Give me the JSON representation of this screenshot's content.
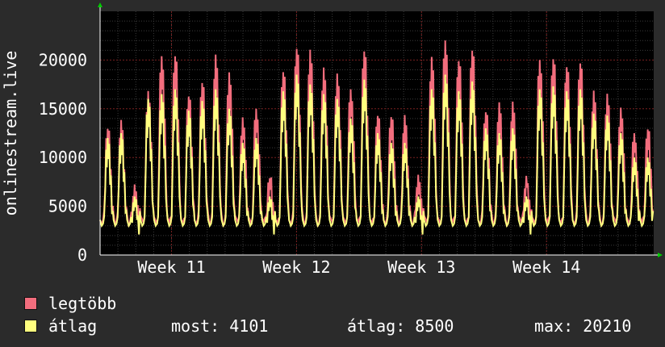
{
  "chart_data": {
    "type": "line",
    "title": "",
    "ylabel": "onlinestream.live",
    "xlabel": "",
    "ylim": [
      0,
      25000
    ],
    "y_ticks": [
      "0",
      "5000",
      "10000",
      "15000",
      "20000"
    ],
    "x_ticks": [
      "Week 11",
      "Week 12",
      "Week 13",
      "Week 14"
    ],
    "x_range_days": [
      0,
      31
    ],
    "x_tick_days": [
      4,
      11,
      18,
      25
    ],
    "grid": true,
    "legend_placement": "bottom-left",
    "daily": {
      "max_peak": [
        13300,
        13500,
        7000,
        16700,
        20400,
        20500,
        16500,
        18000,
        20200,
        18500,
        14000,
        15000,
        8000,
        19000,
        21500,
        20700,
        19000,
        18500,
        17000,
        21000,
        14500,
        14500,
        14000,
        8000,
        20200,
        22000,
        20000,
        21200,
        15000,
        15300,
        15500,
        8000,
        20000,
        20200,
        19500,
        20000,
        16500,
        16300,
        15000,
        12500,
        13000
      ],
      "avg_peak": [
        12000,
        12500,
        6000,
        16000,
        16500,
        17000,
        14800,
        15800,
        17000,
        15000,
        11500,
        12000,
        6000,
        16800,
        18500,
        17500,
        16500,
        16000,
        14000,
        18000,
        12500,
        11500,
        11500,
        6000,
        17000,
        18500,
        16800,
        17800,
        13000,
        12500,
        13000,
        6000,
        17000,
        17300,
        16800,
        17000,
        14500,
        14300,
        12500,
        10000,
        10000
      ],
      "trough": 3000
    },
    "series": [
      {
        "name": "legtöbb",
        "color": "#f26d7d"
      },
      {
        "name": "átlag",
        "color": "#ffff7f"
      }
    ]
  },
  "legend": {
    "items": [
      {
        "label": "legtöbb",
        "color": "#f26d7d"
      },
      {
        "label": "átlag",
        "color": "#ffff7f"
      }
    ],
    "now_label": "most:",
    "now_value": "4101",
    "avg_label": "átlag:",
    "avg_value": "8500",
    "max_label": "max:",
    "max_value": "20210"
  }
}
